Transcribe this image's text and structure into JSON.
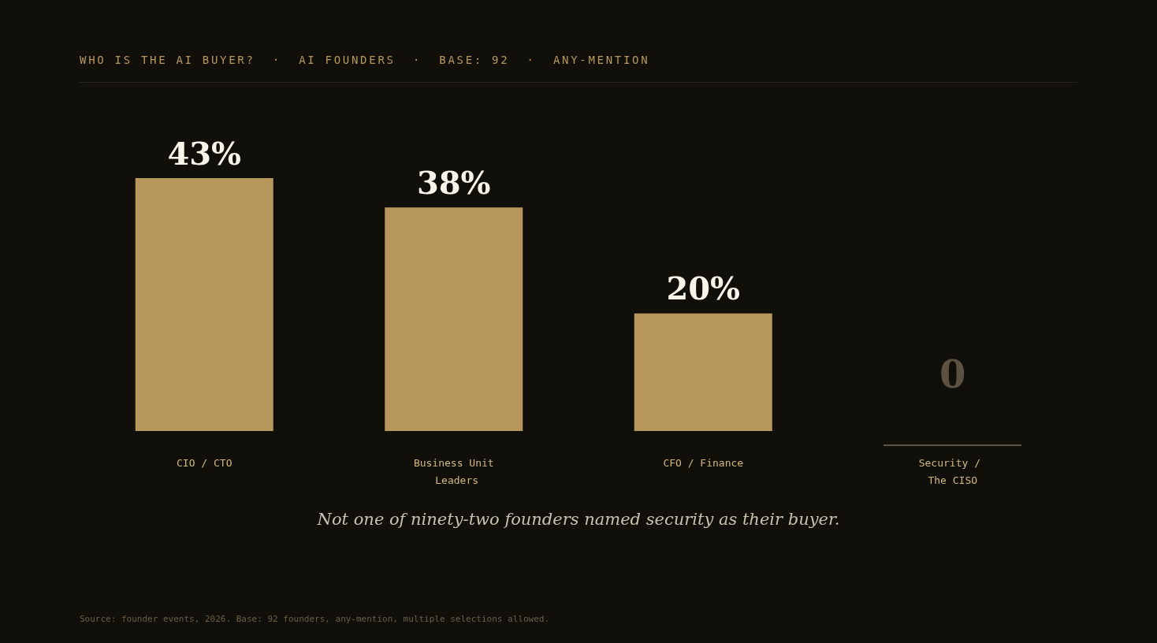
{
  "chart_data": {
    "type": "bar",
    "title": "WHO IS THE AI BUYER?  ·  AI FOUNDERS  ·  BASE: 92  ·  ANY-MENTION",
    "categories": [
      "CIO / CTO",
      "Business Unit Leaders",
      "CFO / Finance",
      "Security / The CISO"
    ],
    "values": [
      43,
      38,
      20,
      0
    ],
    "colors": [
      "#b8975c",
      "#b8975c",
      "#b8975c",
      "#5c5241"
    ],
    "value_labels": [
      "43%",
      "38%",
      "20%",
      "0"
    ],
    "annotations": [
      "Not one of ninety-two founders named security as their buyer.",
      "Source: founder events, 2026. Base: 92 founders, any-mention, multiple selections allowed."
    ]
  }
}
